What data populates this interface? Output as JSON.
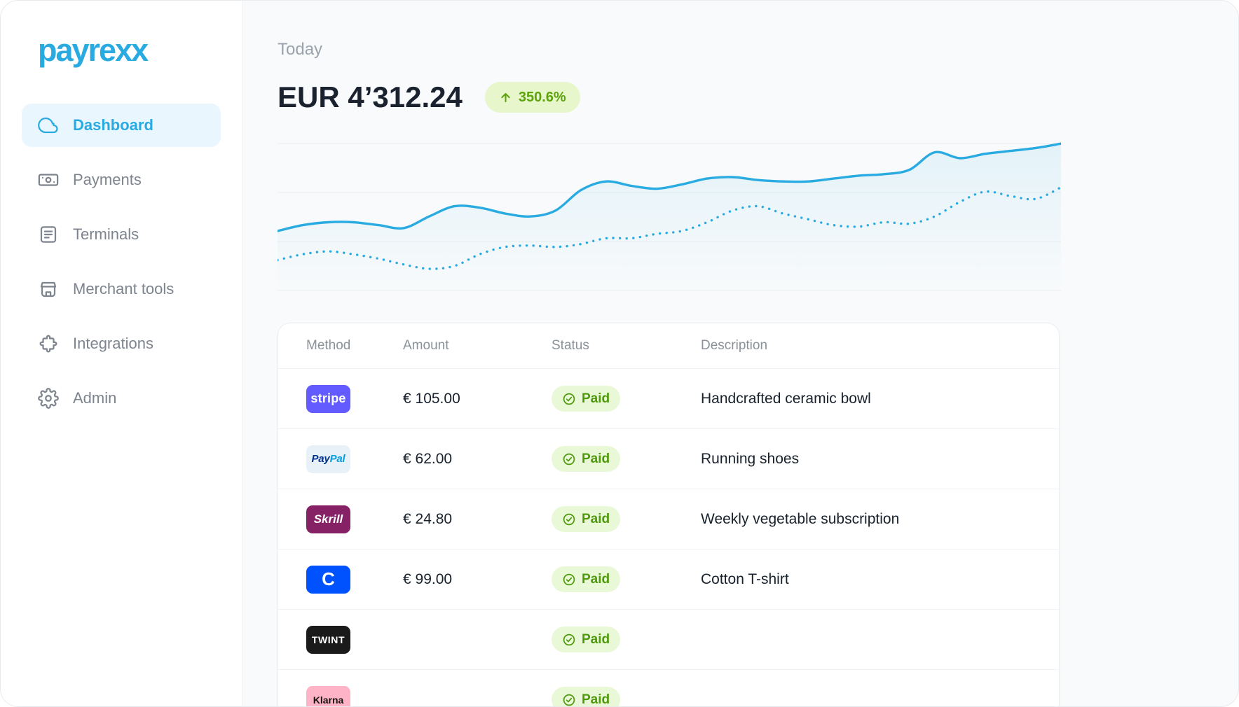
{
  "colors": {
    "accent": "#29ABE2",
    "positive_bg": "#E7F6CB",
    "positive_text": "#5CA30C",
    "paid_bg": "#E9F8D7",
    "paid_text": "#4E9A0B"
  },
  "sidebar": {
    "logo": "payrexx",
    "items": [
      {
        "label": "Dashboard",
        "icon": "cloud-icon",
        "active": true
      },
      {
        "label": "Payments",
        "icon": "cash-icon",
        "active": false
      },
      {
        "label": "Terminals",
        "icon": "terminal-icon",
        "active": false
      },
      {
        "label": "Merchant tools",
        "icon": "storefront-icon",
        "active": false
      },
      {
        "label": "Integrations",
        "icon": "puzzle-icon",
        "active": false
      },
      {
        "label": "Admin",
        "icon": "gear-icon",
        "active": false
      }
    ]
  },
  "header": {
    "period_label": "Today",
    "amount": "EUR 4’312.24",
    "change_value": "350.6%",
    "change_direction": "up"
  },
  "chart_data": {
    "type": "line",
    "title": "",
    "xlabel": "",
    "ylabel": "",
    "x": [
      0,
      1,
      2,
      3,
      4,
      5,
      6,
      7,
      8,
      9,
      10,
      11,
      12,
      13,
      14,
      15,
      16,
      17,
      18,
      19,
      20,
      21,
      22,
      23,
      24,
      25,
      26,
      27,
      28,
      29,
      30,
      31
    ],
    "ylim": [
      0,
      100
    ],
    "grid": true,
    "legend": false,
    "series": [
      {
        "name": "revenue-current",
        "style": "solid",
        "area_fill": true,
        "color": "#29ABE2",
        "values": [
          38,
          42,
          44,
          44,
          42,
          40,
          48,
          55,
          54,
          50,
          48,
          52,
          66,
          72,
          69,
          67,
          70,
          74,
          75,
          73,
          72,
          72,
          74,
          76,
          77,
          80,
          92,
          88,
          91,
          93,
          95,
          98
        ]
      },
      {
        "name": "revenue-comparison",
        "style": "dotted",
        "area_fill": false,
        "color": "#29ABE2",
        "values": [
          18,
          22,
          24,
          22,
          19,
          15,
          12,
          14,
          22,
          27,
          28,
          27,
          29,
          33,
          33,
          36,
          38,
          44,
          52,
          55,
          50,
          46,
          42,
          41,
          44,
          43,
          48,
          58,
          65,
          62,
          60,
          68
        ]
      }
    ]
  },
  "table": {
    "columns": [
      "Method",
      "Amount",
      "Status",
      "Description"
    ],
    "rows": [
      {
        "method": "stripe",
        "method_label": "stripe",
        "badge_bg": "#635BFF",
        "badge_fg": "#FFFFFF",
        "amount": "€ 105.00",
        "status": "Paid",
        "description": "Handcrafted ceramic bowl"
      },
      {
        "method": "paypal",
        "method_label": "PayPal",
        "badge_bg": "#E9F1F8",
        "badge_fg": "#003087",
        "label_parts": [
          {
            "text": "Pay",
            "color": "#003087"
          },
          {
            "text": "Pal",
            "color": "#009CDE"
          }
        ],
        "amount": "€ 62.00",
        "status": "Paid",
        "description": "Running shoes"
      },
      {
        "method": "skrill",
        "method_label": "Skrill",
        "badge_bg": "#862165",
        "badge_fg": "#FFFFFF",
        "amount": "€ 24.80",
        "status": "Paid",
        "description": "Weekly vegetable subscription"
      },
      {
        "method": "coinbase",
        "method_label": "C",
        "badge_bg": "#0052FF",
        "badge_fg": "#FFFFFF",
        "amount": "€ 99.00",
        "status": "Paid",
        "description": "Cotton T-shirt"
      },
      {
        "method": "twint",
        "method_label": "TWINT",
        "badge_bg": "#1A1A1A",
        "badge_fg": "#FFFFFF",
        "amount": "",
        "status": "Paid",
        "description": ""
      },
      {
        "method": "klarna",
        "method_label": "Klarna",
        "badge_bg": "#FFB3C7",
        "badge_fg": "#17120F",
        "amount": "",
        "status": "Paid",
        "description": ""
      }
    ]
  }
}
